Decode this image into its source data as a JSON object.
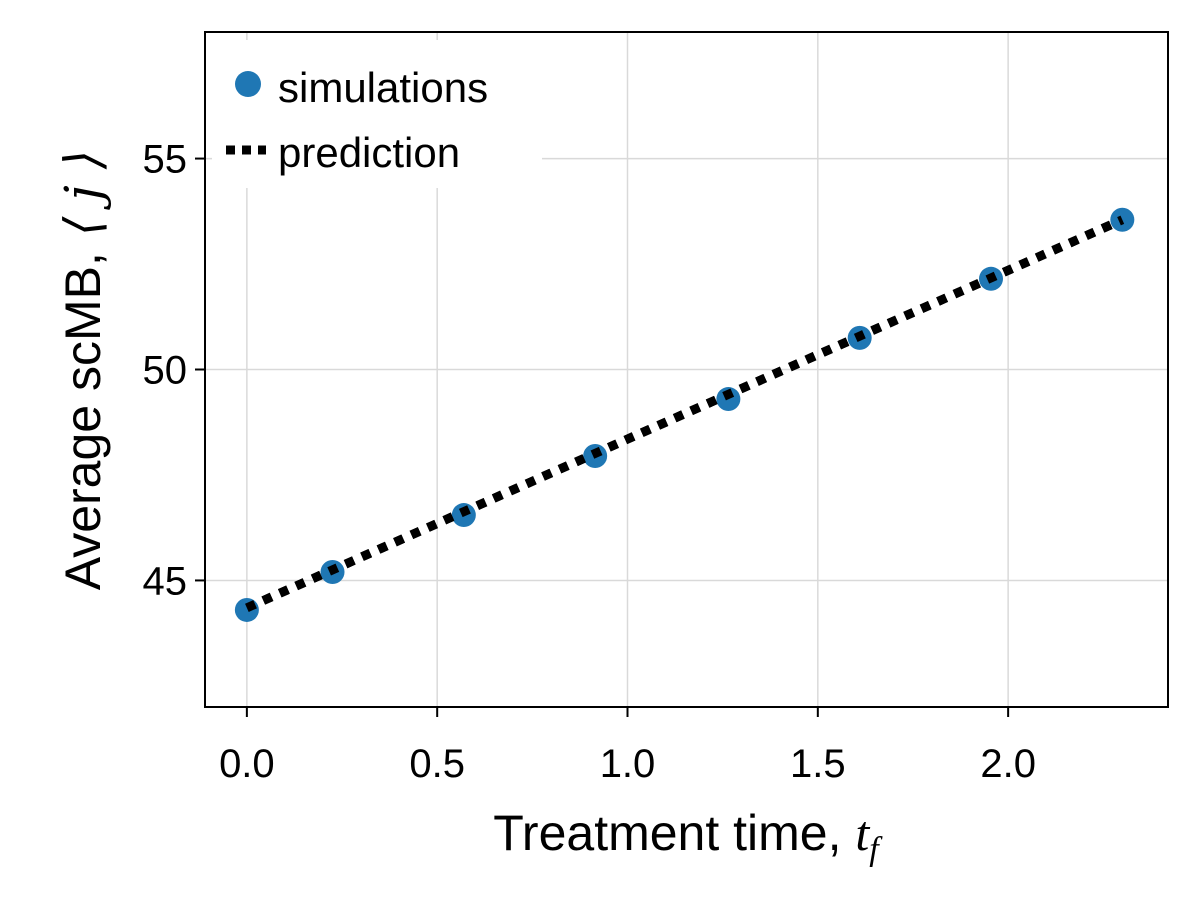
{
  "chart_data": {
    "type": "scatter",
    "xlabel": "Treatment time, ",
    "xlabel_math": "t",
    "xlabel_math_sub": "f",
    "ylabel": "Average scMB,",
    "ylabel_math": "⟨ j ⟩",
    "xlim": [
      -0.11,
      2.42
    ],
    "ylim": [
      42.0,
      58.0
    ],
    "x_ticks": [
      0.0,
      0.5,
      1.0,
      1.5,
      2.0
    ],
    "x_tick_labels": [
      "0.0",
      "0.5",
      "1.0",
      "1.5",
      "2.0"
    ],
    "y_ticks": [
      45,
      50,
      55
    ],
    "y_tick_labels": [
      "45",
      "50",
      "55"
    ],
    "grid": true,
    "legend_position": "top-left",
    "series": [
      {
        "name": "simulations",
        "kind": "scatter",
        "color": "#1f77b4",
        "x": [
          0.0,
          0.225,
          0.57,
          0.915,
          1.265,
          1.61,
          1.955,
          2.3
        ],
        "y": [
          44.3,
          45.2,
          46.55,
          47.95,
          49.3,
          50.75,
          52.15,
          53.55
        ]
      },
      {
        "name": "prediction",
        "kind": "dotted-line",
        "color": "#000000",
        "x": [
          0.0,
          2.3
        ],
        "y": [
          44.35,
          53.55
        ]
      }
    ]
  }
}
